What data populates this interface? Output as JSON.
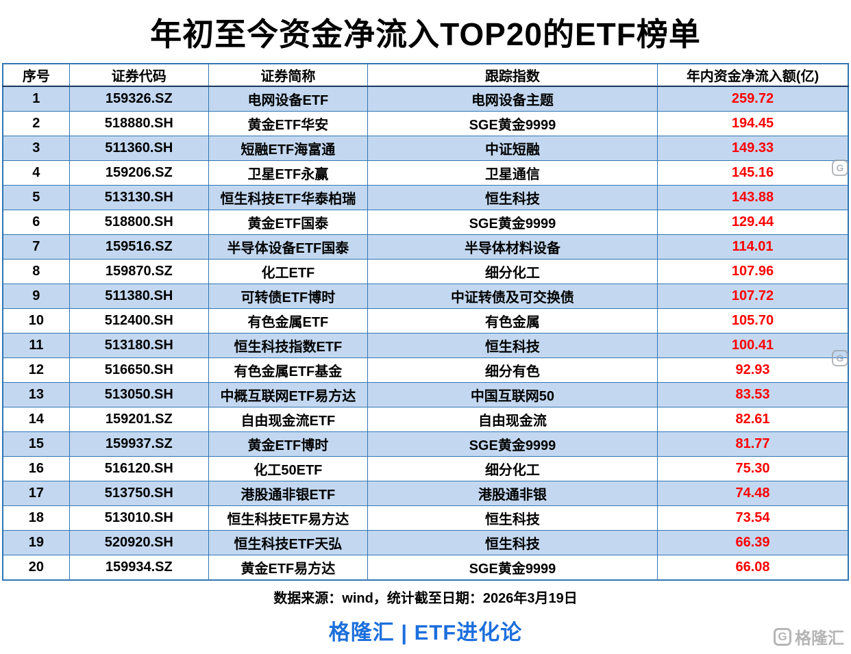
{
  "page": {
    "source_note": "数据来源：wind，统计截至日期：2026年3月19日",
    "brand": "格隆汇 | ETF进化论",
    "logo_text": "格隆汇",
    "logo_glyph": "G"
  },
  "colors": {
    "stripe_blue": "#c3d8f0",
    "table_border_blue": "#2f75b5",
    "header_divider_navy": "#17375e",
    "value_red": "#fe0000",
    "brand_blue": "#1c6fdc",
    "watermark_gray": "#b5b5b5"
  },
  "chart_data": {
    "type": "table",
    "title": "年初至今资金净流入TOP20的ETF榜单",
    "columns": [
      "序号",
      "证券代码",
      "证券简称",
      "跟踪指数",
      "年内资金净流入额(亿)"
    ],
    "rows": [
      [
        "1",
        "159326.SZ",
        "电网设备ETF",
        "电网设备主题",
        "259.72"
      ],
      [
        "2",
        "518880.SH",
        "黄金ETF华安",
        "SGE黄金9999",
        "194.45"
      ],
      [
        "3",
        "511360.SH",
        "短融ETF海富通",
        "中证短融",
        "149.33"
      ],
      [
        "4",
        "159206.SZ",
        "卫星ETF永赢",
        "卫星通信",
        "145.16"
      ],
      [
        "5",
        "513130.SH",
        "恒生科技ETF华泰柏瑞",
        "恒生科技",
        "143.88"
      ],
      [
        "6",
        "518800.SH",
        "黄金ETF国泰",
        "SGE黄金9999",
        "129.44"
      ],
      [
        "7",
        "159516.SZ",
        "半导体设备ETF国泰",
        "半导体材料设备",
        "114.01"
      ],
      [
        "8",
        "159870.SZ",
        "化工ETF",
        "细分化工",
        "107.96"
      ],
      [
        "9",
        "511380.SH",
        "可转债ETF博时",
        "中证转债及可交换债",
        "107.72"
      ],
      [
        "10",
        "512400.SH",
        "有色金属ETF",
        "有色金属",
        "105.70"
      ],
      [
        "11",
        "513180.SH",
        "恒生科技指数ETF",
        "恒生科技",
        "100.41"
      ],
      [
        "12",
        "516650.SH",
        "有色金属ETF基金",
        "细分有色",
        "92.93"
      ],
      [
        "13",
        "513050.SH",
        "中概互联网ETF易方达",
        "中国互联网50",
        "83.53"
      ],
      [
        "14",
        "159201.SZ",
        "自由现金流ETF",
        "自由现金流",
        "82.61"
      ],
      [
        "15",
        "159937.SZ",
        "黄金ETF博时",
        "SGE黄金9999",
        "81.77"
      ],
      [
        "16",
        "516120.SH",
        "化工50ETF",
        "细分化工",
        "75.30"
      ],
      [
        "17",
        "513750.SH",
        "港股通非银ETF",
        "港股通非银",
        "74.48"
      ],
      [
        "18",
        "513010.SH",
        "恒生科技ETF易方达",
        "恒生科技",
        "73.54"
      ],
      [
        "19",
        "520920.SH",
        "恒生科技ETF天弘",
        "恒生科技",
        "66.39"
      ],
      [
        "20",
        "159934.SZ",
        "黄金ETF易方达",
        "SGE黄金9999",
        "66.08"
      ]
    ]
  }
}
